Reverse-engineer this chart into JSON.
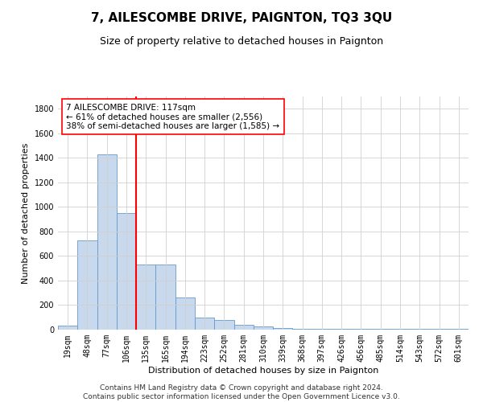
{
  "title": "7, AILESCOMBE DRIVE, PAIGNTON, TQ3 3QU",
  "subtitle": "Size of property relative to detached houses in Paignton",
  "xlabel": "Distribution of detached houses by size in Paignton",
  "ylabel": "Number of detached properties",
  "footer_line1": "Contains HM Land Registry data © Crown copyright and database right 2024.",
  "footer_line2": "Contains public sector information licensed under the Open Government Licence v3.0.",
  "categories": [
    "19sqm",
    "48sqm",
    "77sqm",
    "106sqm",
    "135sqm",
    "165sqm",
    "194sqm",
    "223sqm",
    "252sqm",
    "281sqm",
    "310sqm",
    "339sqm",
    "368sqm",
    "397sqm",
    "426sqm",
    "456sqm",
    "485sqm",
    "514sqm",
    "543sqm",
    "572sqm",
    "601sqm"
  ],
  "values": [
    30,
    730,
    1430,
    950,
    530,
    530,
    260,
    100,
    80,
    40,
    25,
    10,
    5,
    5,
    5,
    5,
    5,
    5,
    5,
    5,
    5
  ],
  "bar_color": "#c9d9ed",
  "bar_edge_color": "#6699cc",
  "vline_x_index": 3,
  "vline_color": "red",
  "annotation_text": "7 AILESCOMBE DRIVE: 117sqm\n← 61% of detached houses are smaller (2,556)\n38% of semi-detached houses are larger (1,585) →",
  "annotation_box_color": "white",
  "annotation_box_edge_color": "red",
  "ylim": [
    0,
    1900
  ],
  "yticks": [
    0,
    200,
    400,
    600,
    800,
    1000,
    1200,
    1400,
    1600,
    1800
  ],
  "grid_color": "#d0d0d0",
  "background_color": "white",
  "title_fontsize": 11,
  "subtitle_fontsize": 9,
  "axis_label_fontsize": 8,
  "tick_fontsize": 7,
  "annotation_fontsize": 7.5,
  "footer_fontsize": 6.5
}
